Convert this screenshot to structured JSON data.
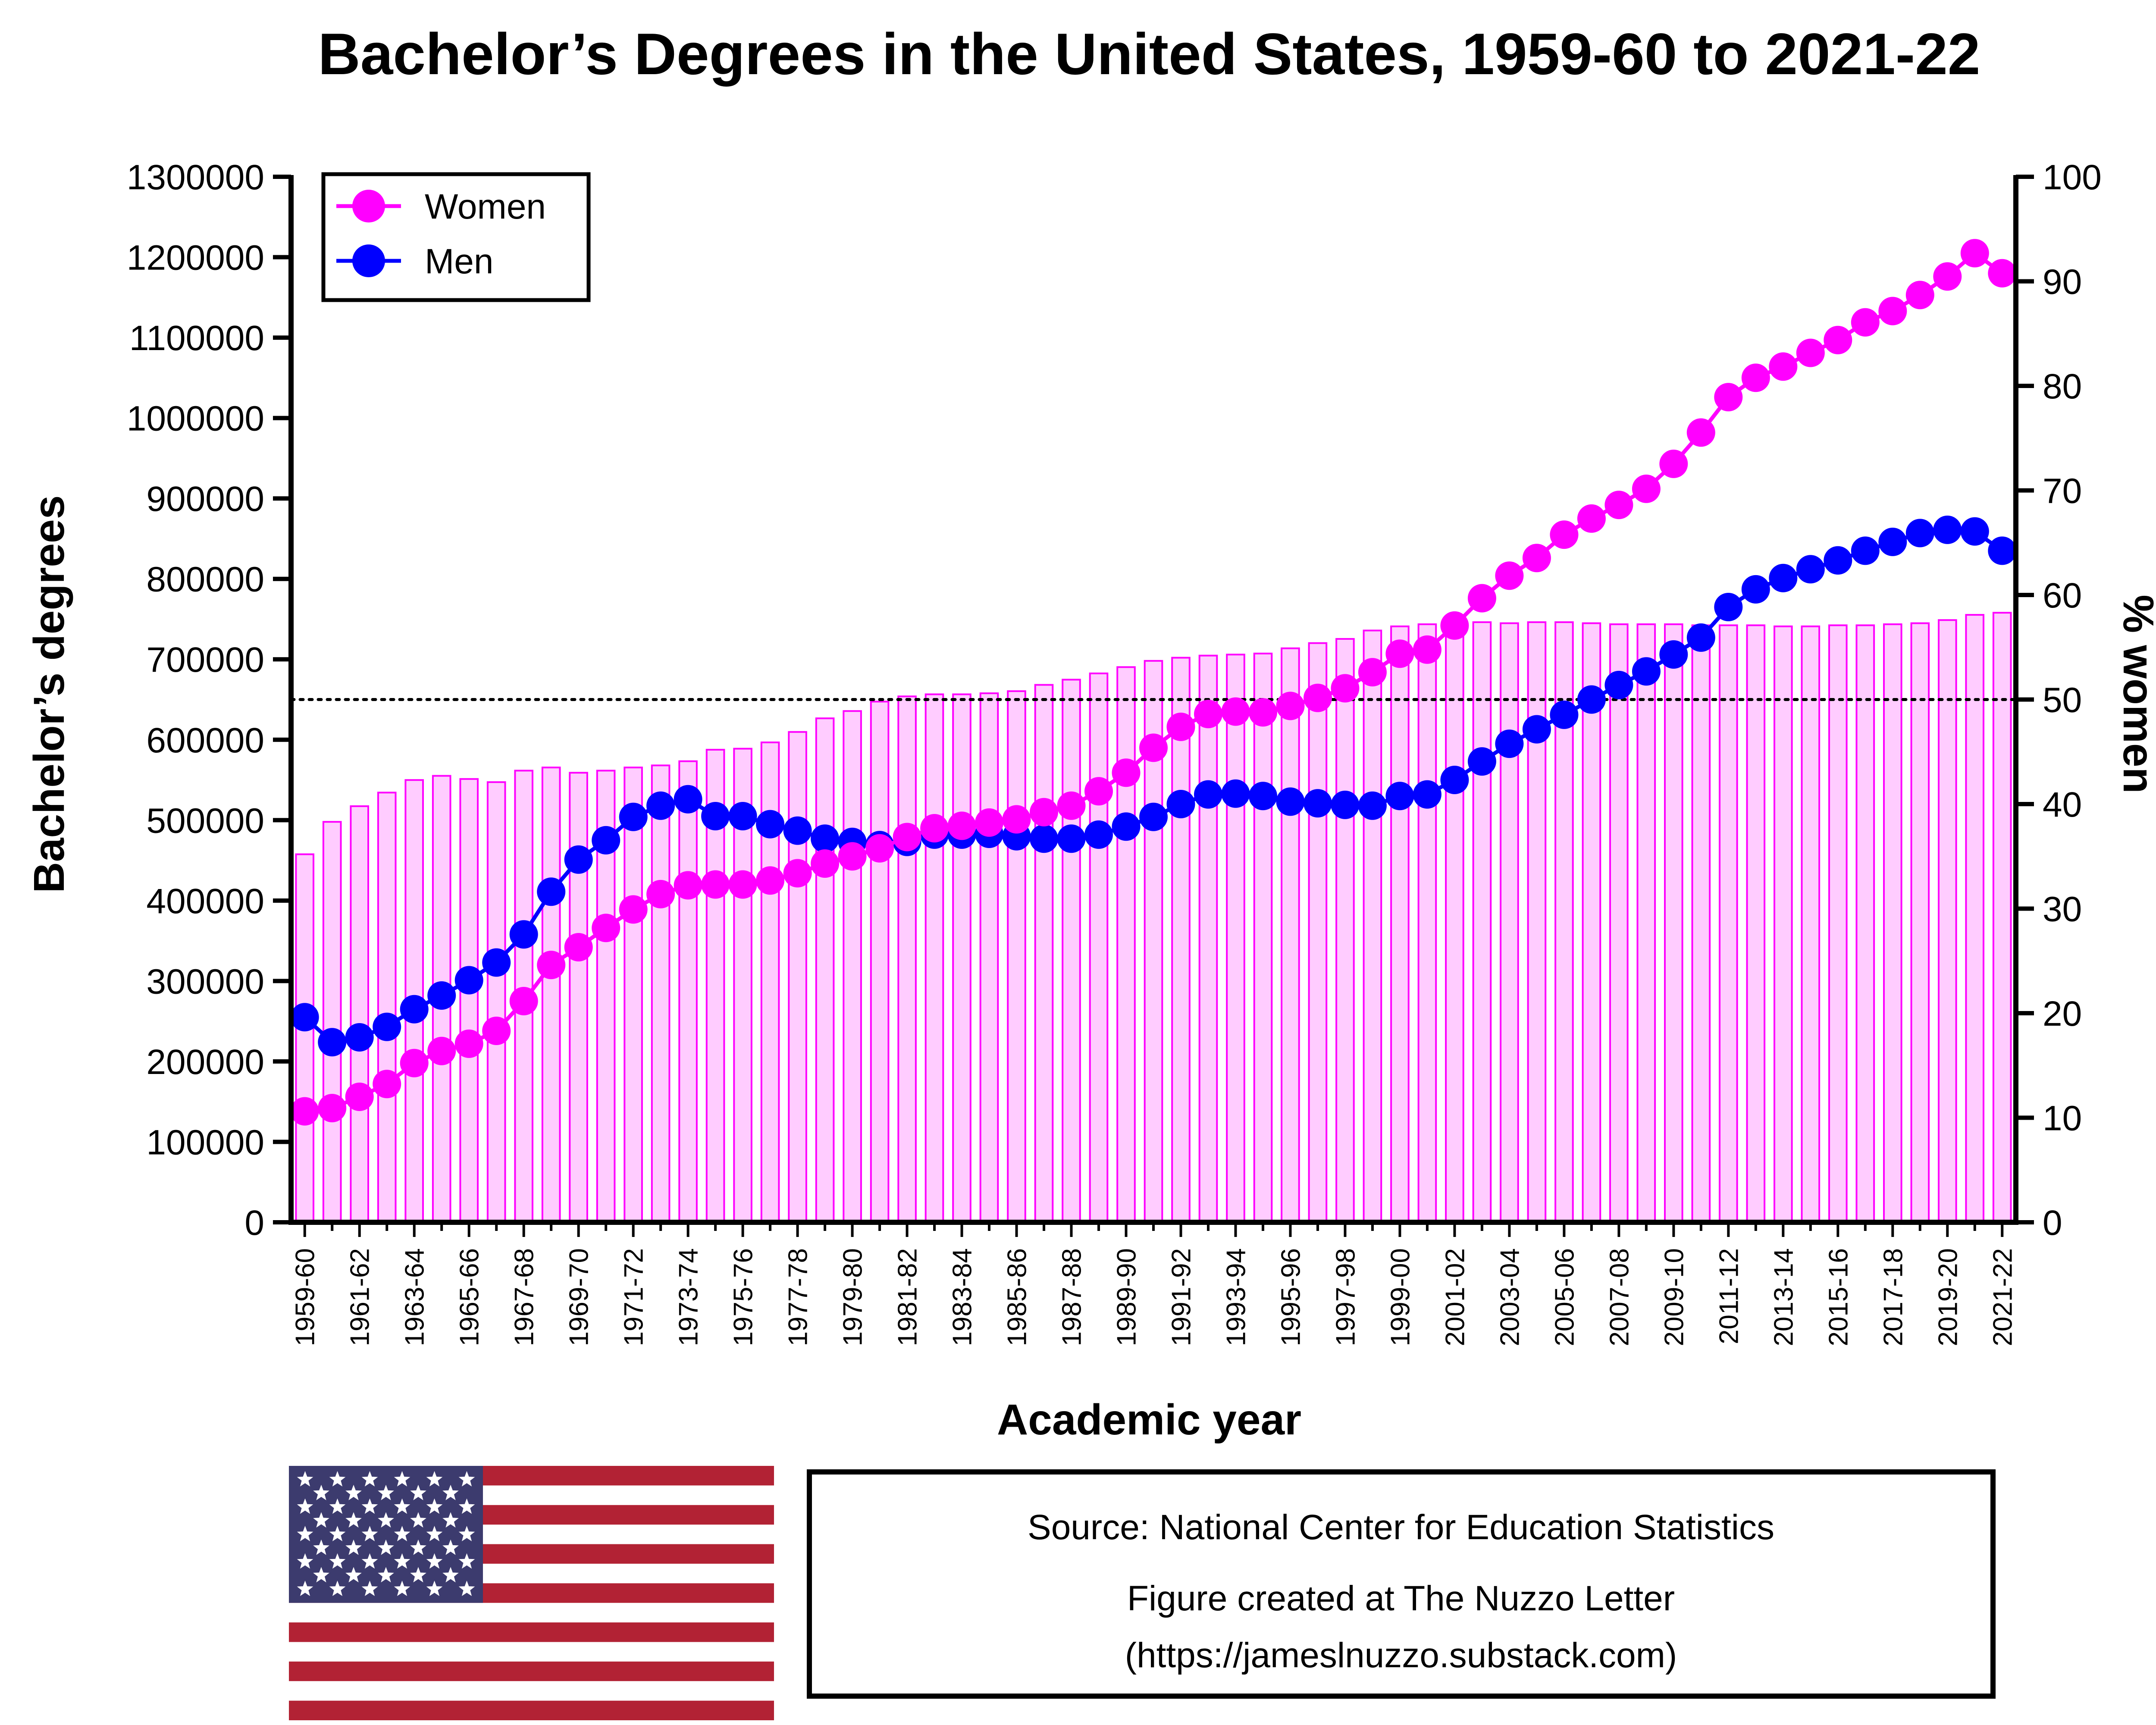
{
  "chart_data": {
    "type": "bar+line",
    "title": "Bachelor’s Degrees in the United States, 1959-60 to 2021-22",
    "xlabel": "Academic year",
    "ylabel": "Bachelor’s degrees",
    "y2label": "% women",
    "ylim": [
      0,
      1300000
    ],
    "y2lim": [
      0,
      100
    ],
    "y_ticks": [
      "0",
      "100000",
      "200000",
      "300000",
      "400000",
      "500000",
      "600000",
      "700000",
      "800000",
      "900000",
      "1000000",
      "1100000",
      "1200000",
      "1300000"
    ],
    "y2_ticks": [
      "0",
      "10",
      "20",
      "30",
      "40",
      "50",
      "60",
      "70",
      "80",
      "90",
      "100"
    ],
    "x_tick_labels": [
      "1959-60",
      "1961-62",
      "1963-64",
      "1965-66",
      "1967-68",
      "1969-70",
      "1971-72",
      "1973-74",
      "1975-76",
      "1977-78",
      "1979-80",
      "1981-82",
      "1983-84",
      "1985-86",
      "1987-88",
      "1989-90",
      "1991-92",
      "1993-94",
      "1995-96",
      "1997-98",
      "1999-00",
      "2001-02",
      "2003-04",
      "2005-06",
      "2007-08",
      "2009-10",
      "2011-12",
      "2013-14",
      "2015-16",
      "2017-18",
      "2019-20",
      "2021-22"
    ],
    "reference_line": {
      "axis": "y2",
      "value": 50,
      "style": "dotted"
    },
    "legend": {
      "position": "top-left",
      "entries": [
        "Women",
        "Men"
      ]
    },
    "series": [
      {
        "name": "Women",
        "type": "line",
        "color": "#ff00ff",
        "values": [
          138000,
          142000,
          156000,
          172000,
          198000,
          213000,
          222000,
          238000,
          275000,
          320000,
          342000,
          366000,
          389000,
          408000,
          419000,
          420000,
          420000,
          425000,
          434000,
          446000,
          455000,
          465000,
          479000,
          490000,
          493000,
          497000,
          501000,
          510000,
          518000,
          536000,
          559000,
          590000,
          616000,
          632000,
          635000,
          634000,
          642000,
          652000,
          664000,
          684000,
          707000,
          712000,
          742000,
          776000,
          804000,
          826000,
          855000,
          875000,
          892000,
          912000,
          943000,
          982000,
          1026000,
          1050000,
          1064000,
          1081000,
          1097000,
          1119000,
          1133000,
          1153000,
          1176000,
          1205000,
          1180000
        ]
      },
      {
        "name": "Men",
        "type": "line",
        "color": "#0000ff",
        "values": [
          255000,
          224000,
          230000,
          243000,
          265000,
          282000,
          301000,
          323000,
          358000,
          411000,
          451000,
          475000,
          504000,
          518000,
          526000,
          505000,
          505000,
          495000,
          487000,
          477000,
          473000,
          469000,
          473000,
          482000,
          482000,
          483000,
          480000,
          477000,
          477000,
          482000,
          492000,
          504000,
          520000,
          532000,
          533000,
          530000,
          523000,
          521000,
          519000,
          518000,
          530000,
          532000,
          550000,
          573000,
          595000,
          613000,
          631000,
          650000,
          668000,
          685000,
          706000,
          727000,
          765000,
          787000,
          801000,
          812000,
          823000,
          835000,
          846000,
          857000,
          861000,
          859000,
          835000
        ]
      },
      {
        "name": "% women",
        "type": "bar",
        "axis": "y2",
        "color": "#ffccff",
        "edge_color": "#ff00ff",
        "values": [
          35.2,
          38.3,
          39.8,
          41.1,
          42.3,
          42.7,
          42.4,
          42.1,
          43.2,
          43.5,
          43.0,
          43.2,
          43.5,
          43.7,
          44.1,
          45.2,
          45.3,
          45.9,
          46.9,
          48.2,
          48.9,
          49.8,
          50.3,
          50.5,
          50.5,
          50.6,
          50.8,
          51.4,
          51.9,
          52.5,
          53.1,
          53.7,
          54.0,
          54.2,
          54.3,
          54.4,
          54.9,
          55.4,
          55.8,
          56.6,
          57.0,
          57.2,
          57.4,
          57.4,
          57.3,
          57.4,
          57.4,
          57.3,
          57.2,
          57.2,
          57.2,
          57.1,
          57.1,
          57.1,
          57.0,
          57.0,
          57.1,
          57.1,
          57.2,
          57.3,
          57.6,
          58.1,
          58.3
        ]
      }
    ]
  },
  "source_box": {
    "source": "Source: National Center for Education Statistics",
    "credit_line1": "Figure created at The Nuzzo Letter",
    "credit_line2": "(https://jameslnuzzo.substack.com)"
  },
  "flag": {
    "name": "us-flag",
    "stripe_red": "#b22234",
    "canton_blue": "#3c3b6e",
    "star_color": "#ffffff"
  }
}
